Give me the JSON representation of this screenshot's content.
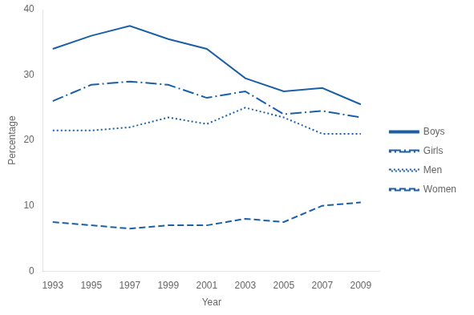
{
  "chart_data": {
    "type": "line",
    "x": [
      1993,
      1995,
      1997,
      1999,
      2001,
      2003,
      2005,
      2007,
      2009
    ],
    "series": [
      {
        "name": "Boys",
        "line_style": "solid",
        "values": [
          34.0,
          36.0,
          37.5,
          35.5,
          34.0,
          29.5,
          27.5,
          28.0,
          25.5
        ]
      },
      {
        "name": "Girls",
        "line_style": "dashdot",
        "values": [
          26.0,
          28.5,
          29.0,
          28.5,
          26.5,
          27.5,
          24.0,
          24.5,
          23.5
        ]
      },
      {
        "name": "Men",
        "line_style": "dotted",
        "values": [
          21.5,
          21.5,
          22.0,
          23.5,
          22.5,
          25.0,
          23.5,
          21.0,
          21.0
        ]
      },
      {
        "name": "Women",
        "line_style": "dashed",
        "values": [
          7.5,
          7.0,
          6.5,
          7.0,
          7.0,
          8.0,
          7.5,
          10.0,
          10.5
        ]
      }
    ],
    "color": "#1a5fa8",
    "xlabel": "Year",
    "ylabel": "Percentage",
    "xlim": [
      1992.5,
      2010
    ],
    "xticks": [
      1993,
      1995,
      1997,
      1999,
      2001,
      2003,
      2005,
      2007,
      2009
    ],
    "ylim": [
      0,
      40
    ],
    "yticks": [
      0,
      10,
      20,
      30,
      40
    ],
    "grid": false,
    "legend": "right"
  }
}
